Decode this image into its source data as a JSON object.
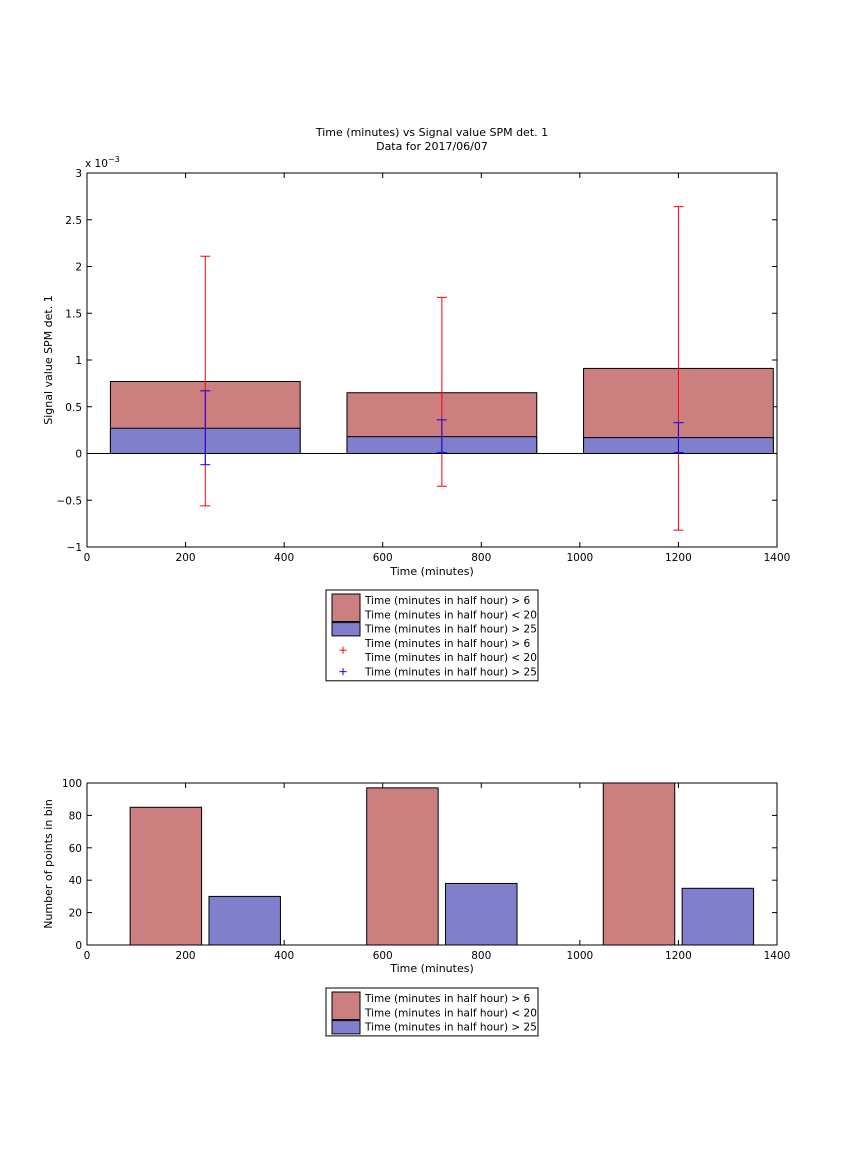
{
  "chart_data": [
    {
      "type": "bar",
      "title": "Time (minutes) vs Signal value SPM det. 1",
      "subtitle": "Data for 2017/06/07",
      "xlabel": "Time (minutes)",
      "ylabel": "Signal value SPM det. 1",
      "y_scale_note": "x 10",
      "y_scale_exponent": "−3",
      "xlim": [
        0,
        1400
      ],
      "ylim": [
        -1,
        3
      ],
      "xticks": [
        0,
        200,
        400,
        600,
        800,
        1000,
        1200,
        1400
      ],
      "yticks": [
        "−1",
        "−0.5",
        "0",
        "0.5",
        "1",
        "1.5",
        "2",
        "2.5",
        "3"
      ],
      "ytick_values": [
        -1,
        -0.5,
        0,
        0.5,
        1,
        1.5,
        2,
        2.5,
        3
      ],
      "bar_centers": [
        240,
        720,
        1200
      ],
      "bar_width": 385,
      "series": [
        {
          "name": "Time (minutes in half hour) > 6\nTime (minutes in half hour) < 20",
          "color": "#cc7f7f",
          "values": [
            0.77,
            0.65,
            0.91
          ],
          "error_low": [
            -0.56,
            -0.35,
            -0.82
          ],
          "error_high": [
            2.11,
            1.67,
            2.64
          ],
          "error_color": "#ff0000"
        },
        {
          "name": "Time (minutes in half hour) > 25",
          "color": "#7f7fcc",
          "values": [
            0.27,
            0.18,
            0.17
          ],
          "error_low": [
            -0.12,
            0.01,
            0.01
          ],
          "error_high": [
            0.67,
            0.36,
            0.33
          ],
          "error_color": "#0000ff"
        }
      ],
      "legend": {
        "placement": "below",
        "entries": [
          {
            "kind": "patch",
            "color": "#cc7f7f",
            "lines": [
              "Time (minutes in half hour) > 6",
              "Time (minutes in half hour) < 20"
            ]
          },
          {
            "kind": "patch",
            "color": "#7f7fcc",
            "lines": [
              "Time (minutes in half hour) > 25"
            ]
          },
          {
            "kind": "marker",
            "color": "#ff0000",
            "lines": [
              "Time (minutes in half hour) > 6",
              "Time (minutes in half hour) < 20"
            ]
          },
          {
            "kind": "marker",
            "color": "#0000ff",
            "lines": [
              "Time (minutes in half hour) > 25"
            ]
          }
        ]
      }
    },
    {
      "type": "bar",
      "xlabel": "Time (minutes)",
      "ylabel": "Number of points in bin",
      "xlim": [
        0,
        1400
      ],
      "ylim": [
        0,
        100
      ],
      "xticks": [
        0,
        200,
        400,
        600,
        800,
        1000,
        1200,
        1400
      ],
      "yticks": [
        "0",
        "20",
        "40",
        "60",
        "80",
        "100"
      ],
      "ytick_values": [
        0,
        20,
        40,
        60,
        80,
        100
      ],
      "bar_width": 145,
      "series": [
        {
          "name": "Time (minutes in half hour) > 6\nTime (minutes in half hour) < 20",
          "color": "#cc7f7f",
          "x": [
            160,
            640,
            1120
          ],
          "values": [
            85,
            97,
            100
          ]
        },
        {
          "name": "Time (minutes in half hour) > 25",
          "color": "#7f7fcc",
          "x": [
            320,
            800,
            1280
          ],
          "values": [
            30,
            38,
            35
          ]
        }
      ],
      "legend": {
        "placement": "below",
        "entries": [
          {
            "kind": "patch",
            "color": "#cc7f7f",
            "lines": [
              "Time (minutes in half hour) > 6",
              "Time (minutes in half hour) < 20"
            ]
          },
          {
            "kind": "patch",
            "color": "#7f7fcc",
            "lines": [
              "Time (minutes in half hour) > 25"
            ]
          }
        ]
      }
    }
  ]
}
